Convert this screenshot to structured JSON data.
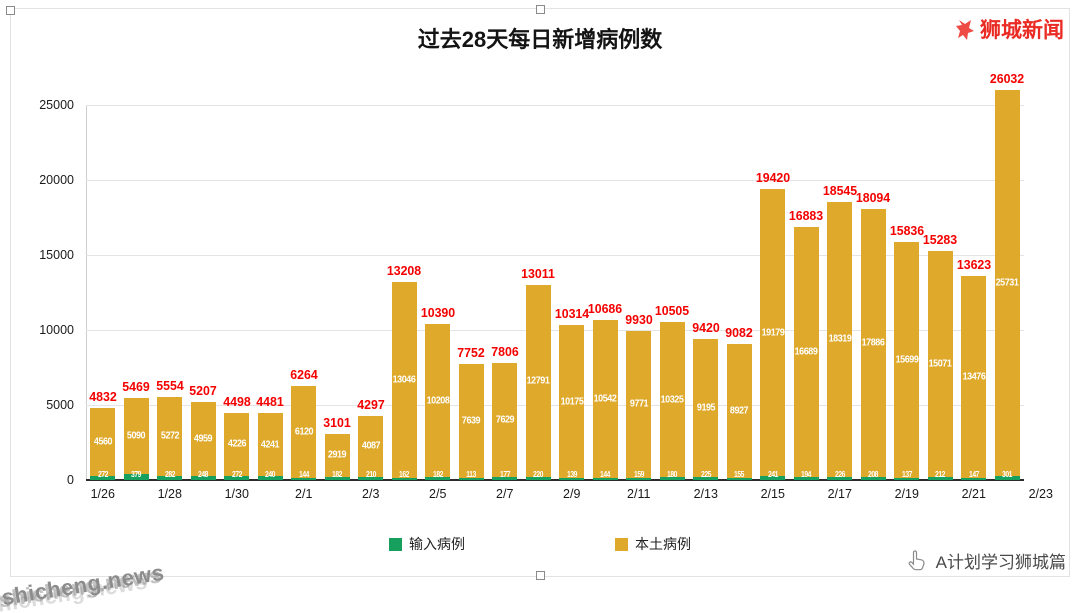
{
  "header": {
    "logo_text": "狮城新闻"
  },
  "chart_data": {
    "type": "bar",
    "stacked": true,
    "title": "过去28天每日新增病例数",
    "ylim": [
      0,
      25000
    ],
    "y_ticks": [
      0,
      5000,
      10000,
      15000,
      20000,
      25000
    ],
    "x_tick_labels": [
      "1/26",
      "1/28",
      "1/30",
      "2/1",
      "2/3",
      "2/5",
      "2/7",
      "2/9",
      "2/11",
      "2/13",
      "2/15",
      "2/17",
      "2/19",
      "2/21",
      "2/23"
    ],
    "grid": true,
    "legend_position": "bottom",
    "total_label_color": "#F40000",
    "series": [
      {
        "name": "输入病例",
        "color": "#17A05D",
        "values": [
          272,
          379,
          282,
          248,
          272,
          240,
          144,
          182,
          210,
          162,
          182,
          113,
          177,
          220,
          139,
          144,
          159,
          180,
          225,
          155,
          241,
          194,
          226,
          208,
          137,
          212,
          147,
          301
        ]
      },
      {
        "name": "本土病例",
        "color": "#DFA92B",
        "values": [
          4560,
          5090,
          5272,
          4959,
          4226,
          4241,
          6120,
          2919,
          4087,
          13046,
          10208,
          7639,
          7629,
          12791,
          10175,
          10542,
          9771,
          10325,
          9195,
          8927,
          19179,
          16689,
          18319,
          17886,
          15699,
          15071,
          13476,
          25731
        ]
      }
    ],
    "totals": [
      4832,
      5469,
      5554,
      5207,
      4498,
      4481,
      6264,
      3101,
      4297,
      13208,
      10390,
      7752,
      7806,
      13011,
      10314,
      10686,
      9930,
      10505,
      9420,
      9082,
      19420,
      16883,
      18545,
      18094,
      15836,
      15283,
      13623,
      26032
    ]
  },
  "watermark": {
    "text": "shicheng.news"
  },
  "footer": {
    "brand": "A计划学习狮城篇"
  }
}
